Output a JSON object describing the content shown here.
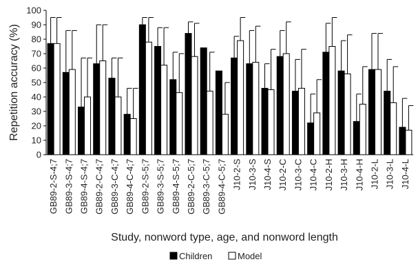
{
  "chart_data": {
    "type": "bar",
    "ylabel": "Repetition accuracy (%)",
    "xlabel": "Study, nonword type, age, and nonword length",
    "ylim": [
      0,
      100
    ],
    "yticks": [
      "0",
      "10",
      "20",
      "30",
      "40",
      "50",
      "60",
      "70",
      "80",
      "90",
      "100"
    ],
    "legend": {
      "position": "bottom-center"
    },
    "grid": false,
    "colors": {
      "children": "#000000",
      "model": "#ffffff",
      "outline": "#000000"
    },
    "categories": [
      "GB89-2-S-4;7",
      "GB89-3-S-4;7",
      "GB89-4-S-4;7",
      "GB89-2-C-4;7",
      "GB89-3-C-4;7",
      "GB89-4-C-4;7",
      "GB89-2-S-5;7",
      "GB89-3-S-5;7",
      "GB89-4-S-5;7",
      "GB89-2-C-5;7",
      "GB89-3-C-5;7",
      "GB89-4-C-5;7",
      "J10-2-S",
      "J10-3-S",
      "J10-4-S",
      "J10-2-C",
      "J10-3-C",
      "J10-4-C",
      "J10-2-H",
      "J10-3-H",
      "J10-4-H",
      "J10-2-L",
      "J10-3-L",
      "J10-4-L"
    ],
    "series": [
      {
        "name": "Children",
        "values": [
          77,
          57,
          33,
          63,
          53,
          28,
          90,
          75,
          52,
          84,
          74,
          58,
          67,
          63,
          46,
          68,
          44,
          22,
          71,
          58,
          23,
          59,
          44,
          19
        ],
        "error": [
          18,
          29,
          34,
          27,
          14,
          18,
          5,
          13,
          19,
          8,
          0,
          0,
          15,
          23,
          17,
          18,
          22,
          20,
          20,
          21,
          19,
          25,
          22,
          20
        ]
      },
      {
        "name": "Model",
        "values": [
          77,
          59,
          40,
          65,
          40,
          25,
          78,
          62,
          43,
          68,
          44,
          28,
          79,
          64,
          45,
          70,
          46,
          29,
          75,
          56,
          35,
          59,
          36,
          17
        ],
        "error": [
          18,
          27,
          27,
          25,
          27,
          21,
          17,
          26,
          27,
          23,
          27,
          22,
          16,
          25,
          28,
          22,
          27,
          23,
          20,
          27,
          26,
          25,
          25,
          17
        ]
      }
    ]
  }
}
